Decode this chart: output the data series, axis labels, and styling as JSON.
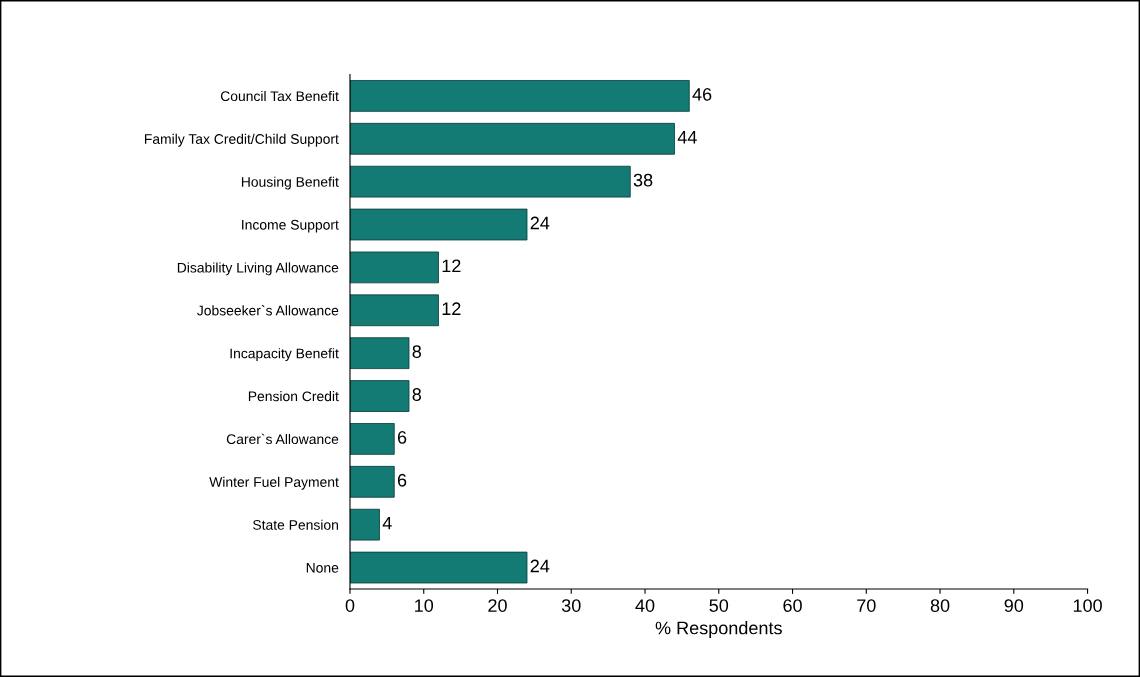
{
  "chart_data": {
    "type": "bar",
    "orientation": "horizontal",
    "xlabel": "% Respondents",
    "categories": [
      "Council Tax Benefit",
      "Family Tax Credit/Child Support",
      "Housing Benefit",
      "Income Support",
      "Disability Living Allowance",
      "Jobseeker`s Allowance",
      "Incapacity Benefit",
      "Pension Credit",
      "Carer`s Allowance",
      "Winter Fuel Payment",
      "State Pension",
      "None"
    ],
    "values": [
      46,
      44,
      38,
      24,
      12,
      12,
      8,
      8,
      6,
      6,
      4,
      24
    ],
    "color": "#137a74",
    "data_labels": true,
    "grid": false,
    "legend": false,
    "xlim": [
      0,
      100
    ],
    "xticks": [
      0,
      10,
      20,
      30,
      40,
      50,
      60,
      70,
      80,
      90,
      100
    ]
  }
}
